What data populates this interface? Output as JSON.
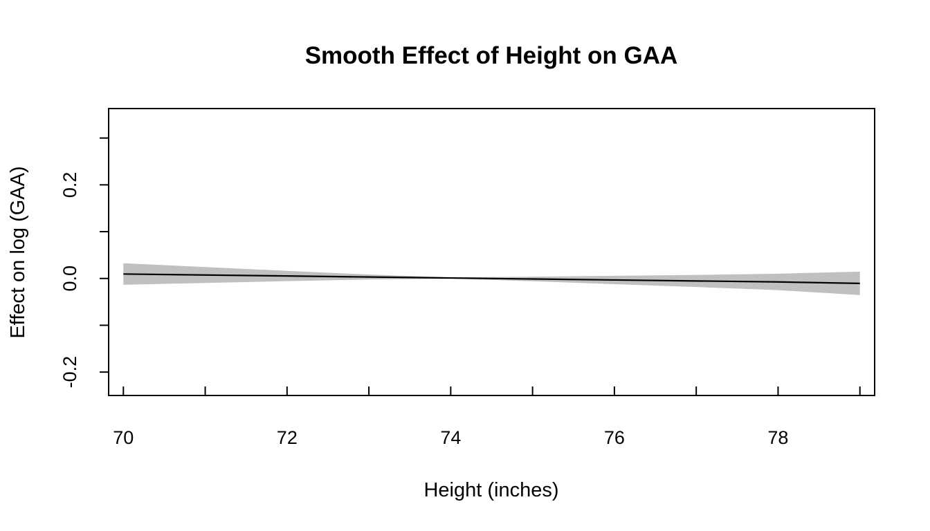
{
  "chart_data": {
    "type": "line",
    "title": "Smooth Effect of Height on GAA",
    "xlabel": "Height (inches)",
    "ylabel": "Effect on log (GAA)",
    "xlim": [
      69.82,
      79.18
    ],
    "ylim": [
      -0.25,
      0.363
    ],
    "x_ticks": [
      70,
      71,
      72,
      73,
      74,
      75,
      76,
      77,
      78,
      79
    ],
    "x_tick_labels": [
      "70",
      "",
      "72",
      "",
      "74",
      "",
      "76",
      "",
      "78",
      ""
    ],
    "y_ticks": [
      -0.2,
      -0.1,
      0.0,
      0.1,
      0.2,
      0.3
    ],
    "y_tick_labels": [
      "-0.2",
      "",
      "0.0",
      "",
      "0.2",
      ""
    ],
    "grid": false,
    "legend": "none",
    "colors": {
      "line": "#000000",
      "band": "#c0c0c0",
      "frame": "#000000"
    },
    "series": [
      {
        "x": [
          70,
          71,
          72,
          73,
          74,
          75,
          76,
          77,
          78,
          79
        ],
        "y": [
          0.0095,
          0.0074,
          0.0053,
          0.0031,
          0.001,
          -0.0011,
          -0.0032,
          -0.0053,
          -0.0074,
          -0.0105
        ],
        "lower": [
          -0.0135,
          -0.0096,
          -0.0057,
          -0.0022,
          -0.0004,
          -0.006,
          -0.0121,
          -0.0182,
          -0.025,
          -0.0355
        ],
        "upper": [
          0.0325,
          0.0244,
          0.0163,
          0.0084,
          0.0024,
          0.0038,
          0.0057,
          0.0076,
          0.0102,
          0.0145
        ]
      }
    ]
  }
}
